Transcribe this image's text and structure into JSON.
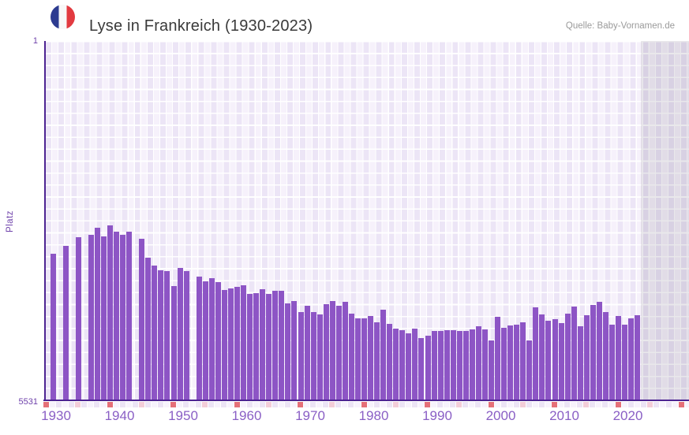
{
  "header": {
    "title": "Lyse in Frankreich (1930-2023)",
    "source": "Quelle: Baby-Vornamen.de",
    "flag_icon": "french-flag"
  },
  "axes": {
    "y_label": "Platz",
    "y_top": "1",
    "y_bottom": "5531"
  },
  "colors": {
    "bar": "#8d55c5",
    "axis_line": "#4d2492",
    "x_tick_text": "#8a5fc5",
    "y_tick_text": "#6f42ab",
    "title_text": "#3a3a3a",
    "source_text": "#9a9a9a",
    "decade_marker": "#e57078",
    "half_decade_marker": "#f3cdd8",
    "strip_cell_even": "#ece4f5",
    "strip_cell_odd": "#f7f3fc",
    "future_overlay": "rgba(100,90,115,0.14)",
    "flag_blue": "#2d3b90",
    "flag_red": "#e23a40"
  },
  "chart_data": {
    "type": "bar",
    "title": "Lyse in Frankreich (1930-2023)",
    "xlabel": "",
    "ylabel": "Platz",
    "y_axis": {
      "min": 1,
      "max": 5531,
      "inverted": true,
      "top_label": "1",
      "bottom_label": "5531"
    },
    "x_ticks": [
      1930,
      1940,
      1950,
      1960,
      1970,
      1980,
      1990,
      2000,
      2010,
      2020
    ],
    "x_range": [
      1930,
      2031
    ],
    "data_range": [
      1930,
      2023
    ],
    "missing_years": [
      1930,
      1932,
      1934,
      1936,
      1944,
      1953
    ],
    "legend": "none",
    "grid": "checkered",
    "points": [
      [
        1931,
        3286
      ],
      [
        1933,
        3161
      ],
      [
        1935,
        3027
      ],
      [
        1937,
        2991
      ],
      [
        1938,
        2881
      ],
      [
        1939,
        3021
      ],
      [
        1940,
        2845
      ],
      [
        1941,
        2942
      ],
      [
        1942,
        2985
      ],
      [
        1943,
        2942
      ],
      [
        1945,
        3051
      ],
      [
        1946,
        3343
      ],
      [
        1947,
        3465
      ],
      [
        1948,
        3538
      ],
      [
        1949,
        3550
      ],
      [
        1950,
        3781
      ],
      [
        1951,
        3501
      ],
      [
        1952,
        3550
      ],
      [
        1954,
        3635
      ],
      [
        1955,
        3708
      ],
      [
        1956,
        3660
      ],
      [
        1957,
        3720
      ],
      [
        1958,
        3842
      ],
      [
        1959,
        3817
      ],
      [
        1960,
        3793
      ],
      [
        1961,
        3769
      ],
      [
        1962,
        3902
      ],
      [
        1963,
        3890
      ],
      [
        1964,
        3830
      ],
      [
        1965,
        3902
      ],
      [
        1966,
        3854
      ],
      [
        1967,
        3854
      ],
      [
        1968,
        4048
      ],
      [
        1969,
        4012
      ],
      [
        1970,
        4182
      ],
      [
        1971,
        4085
      ],
      [
        1972,
        4182
      ],
      [
        1973,
        4218
      ],
      [
        1974,
        4060
      ],
      [
        1975,
        4012
      ],
      [
        1976,
        4085
      ],
      [
        1977,
        4024
      ],
      [
        1978,
        4206
      ],
      [
        1979,
        4279
      ],
      [
        1980,
        4279
      ],
      [
        1981,
        4243
      ],
      [
        1982,
        4340
      ],
      [
        1983,
        4146
      ],
      [
        1984,
        4364
      ],
      [
        1985,
        4437
      ],
      [
        1986,
        4461
      ],
      [
        1987,
        4510
      ],
      [
        1988,
        4437
      ],
      [
        1989,
        4583
      ],
      [
        1990,
        4546
      ],
      [
        1991,
        4473
      ],
      [
        1992,
        4473
      ],
      [
        1993,
        4461
      ],
      [
        1994,
        4461
      ],
      [
        1995,
        4473
      ],
      [
        1996,
        4473
      ],
      [
        1997,
        4449
      ],
      [
        1998,
        4401
      ],
      [
        1999,
        4449
      ],
      [
        2000,
        4619
      ],
      [
        2001,
        4255
      ],
      [
        2002,
        4425
      ],
      [
        2003,
        4389
      ],
      [
        2004,
        4377
      ],
      [
        2005,
        4340
      ],
      [
        2006,
        4625
      ],
      [
        2007,
        4109
      ],
      [
        2008,
        4218
      ],
      [
        2009,
        4316
      ],
      [
        2010,
        4291
      ],
      [
        2011,
        4352
      ],
      [
        2012,
        4206
      ],
      [
        2013,
        4097
      ],
      [
        2014,
        4401
      ],
      [
        2015,
        4231
      ],
      [
        2016,
        4073
      ],
      [
        2017,
        4021
      ],
      [
        2018,
        4182
      ],
      [
        2019,
        4377
      ],
      [
        2020,
        4243
      ],
      [
        2021,
        4377
      ],
      [
        2022,
        4279
      ],
      [
        2023,
        4231
      ]
    ]
  }
}
